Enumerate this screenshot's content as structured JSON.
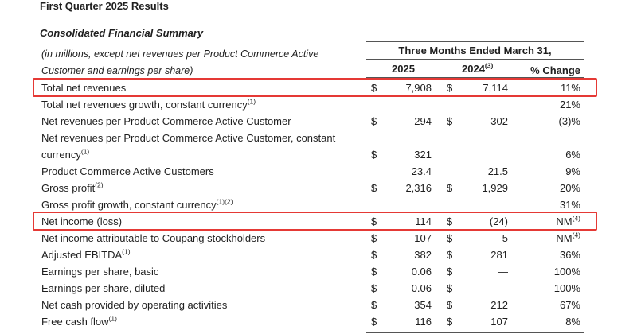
{
  "title": "First Quarter 2025 Results",
  "subtitle": "Consolidated Financial Summary",
  "note_line1": "(in millions, except net revenues per Product Commerce Active",
  "note_line2": "Customer and earnings per share)",
  "period_header": "Three Months Ended March 31,",
  "col_2025": "2025",
  "col_2024": "2024",
  "col_2024_sup": "(3)",
  "col_change": "% Change",
  "rows": [
    {
      "label": "Total net revenues",
      "sup": "",
      "cur1": "$",
      "v2025": "7,908",
      "cur2": "$",
      "v2024": "7,114",
      "change": "11%",
      "change_sup": ""
    },
    {
      "label": "Total net revenues growth, constant currency",
      "sup": "(1)",
      "cur1": "",
      "v2025": "",
      "cur2": "",
      "v2024": "",
      "change": "21%",
      "change_sup": ""
    },
    {
      "label": "Net revenues per Product Commerce Active Customer",
      "sup": "",
      "cur1": "$",
      "v2025": "294",
      "cur2": "$",
      "v2024": "302",
      "change": "(3)%",
      "change_sup": ""
    },
    {
      "label": "Net revenues per Product Commerce Active Customer, constant",
      "sup": "",
      "cur1": "",
      "v2025": "",
      "cur2": "",
      "v2024": "",
      "change": "",
      "change_sup": ""
    },
    {
      "label": "currency",
      "sup": "(1)",
      "cur1": "$",
      "v2025": "321",
      "cur2": "",
      "v2024": "",
      "change": "6%",
      "change_sup": ""
    },
    {
      "label": "Product Commerce Active Customers",
      "sup": "",
      "cur1": "",
      "v2025": "23.4",
      "cur2": "",
      "v2024": "21.5",
      "change": "9%",
      "change_sup": ""
    },
    {
      "label": "Gross profit",
      "sup": "(2)",
      "cur1": "$",
      "v2025": "2,316",
      "cur2": "$",
      "v2024": "1,929",
      "change": "20%",
      "change_sup": ""
    },
    {
      "label": "Gross profit growth, constant currency",
      "sup": "(1)(2)",
      "cur1": "",
      "v2025": "",
      "cur2": "",
      "v2024": "",
      "change": "31%",
      "change_sup": ""
    },
    {
      "label": "Net income (loss)",
      "sup": "",
      "cur1": "$",
      "v2025": "114",
      "cur2": "$",
      "v2024": "(24)",
      "change": "NM",
      "change_sup": "(4)"
    },
    {
      "label": "Net income attributable to Coupang stockholders",
      "sup": "",
      "cur1": "$",
      "v2025": "107",
      "cur2": "$",
      "v2024": "5",
      "change": "NM",
      "change_sup": "(4)"
    },
    {
      "label": "Adjusted EBITDA",
      "sup": "(1)",
      "cur1": "$",
      "v2025": "382",
      "cur2": "$",
      "v2024": "281",
      "change": "36%",
      "change_sup": ""
    },
    {
      "label": "Earnings per share, basic",
      "sup": "",
      "cur1": "$",
      "v2025": "0.06",
      "cur2": "$",
      "v2024": "—",
      "change": "100%",
      "change_sup": ""
    },
    {
      "label": "Earnings per share, diluted",
      "sup": "",
      "cur1": "$",
      "v2025": "0.06",
      "cur2": "$",
      "v2024": "—",
      "change": "100%",
      "change_sup": ""
    },
    {
      "label": "Net cash provided by operating activities",
      "sup": "",
      "cur1": "$",
      "v2025": "354",
      "cur2": "$",
      "v2024": "212",
      "change": "67%",
      "change_sup": ""
    },
    {
      "label": "Free cash flow",
      "sup": "(1)",
      "cur1": "$",
      "v2025": "116",
      "cur2": "$",
      "v2024": "107",
      "change": "8%",
      "change_sup": ""
    }
  ],
  "highlight_color": "#e53935"
}
